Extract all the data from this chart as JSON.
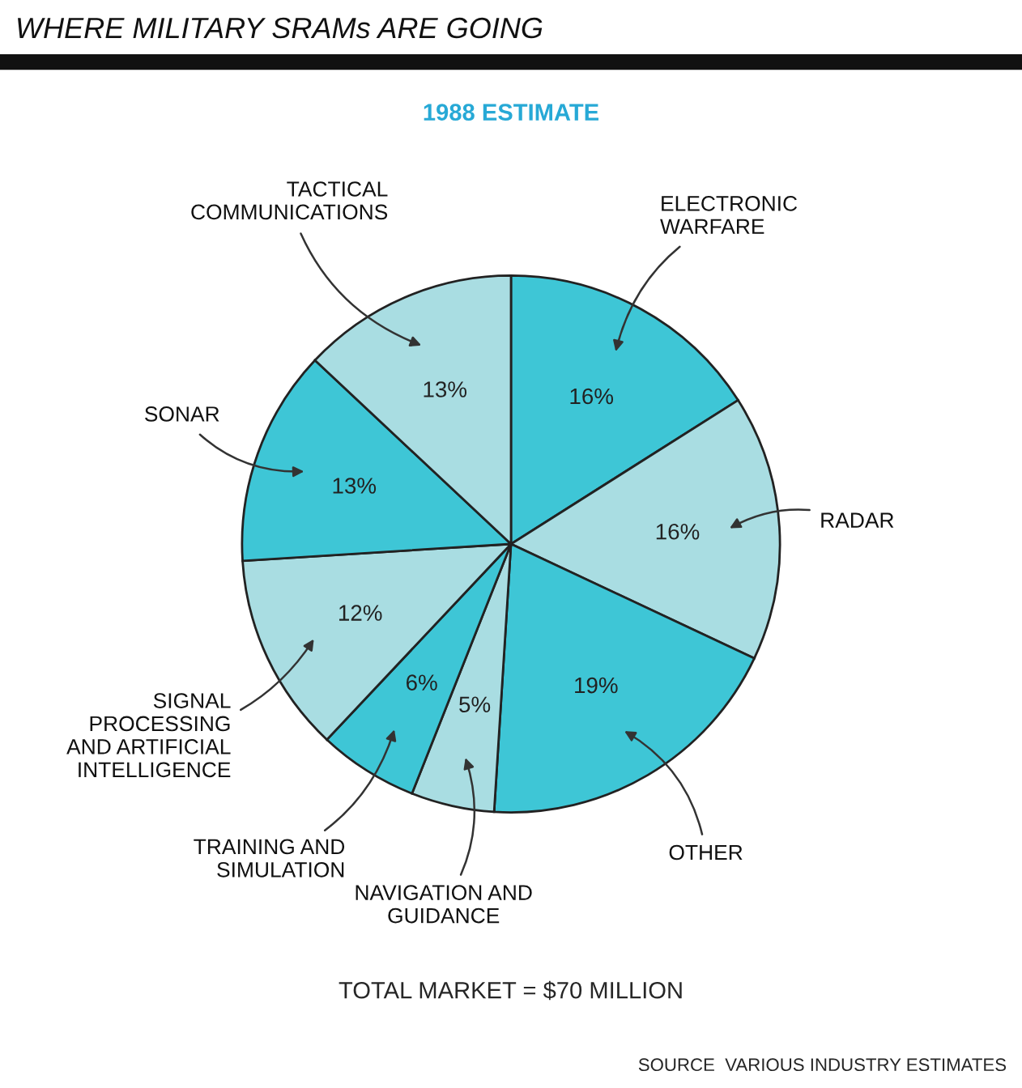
{
  "chart_data": {
    "type": "pie",
    "title": "WHERE MILITARY SRAMs ARE GOING",
    "subtitle": "1988 ESTIMATE",
    "categories": [
      "ELECTRONIC\nWARFARE",
      "RADAR",
      "OTHER",
      "NAVIGATION AND\nGUIDANCE",
      "TRAINING AND\nSIMULATION",
      "SIGNAL\nPROCESSING\nAND ARTIFICIAL\nINTELLIGENCE",
      "SONAR",
      "TACTICAL\nCOMMUNICATIONS"
    ],
    "values": [
      16,
      16,
      19,
      5,
      6,
      12,
      13,
      13
    ],
    "value_labels": [
      "16%",
      "16%",
      "19%",
      "5%",
      "6%",
      "12%",
      "13%",
      "13%"
    ],
    "colors": [
      "#3ec6d6",
      "#a9dde2",
      "#3ec6d6",
      "#a9dde2",
      "#3ec6d6",
      "#a9dde2",
      "#3ec6d6",
      "#a9dde2"
    ],
    "annotations": [
      "TOTAL MARKET = $70 MILLION",
      "SOURCE  VARIOUS INDUSTRY ESTIMATES"
    ],
    "legend": false
  }
}
